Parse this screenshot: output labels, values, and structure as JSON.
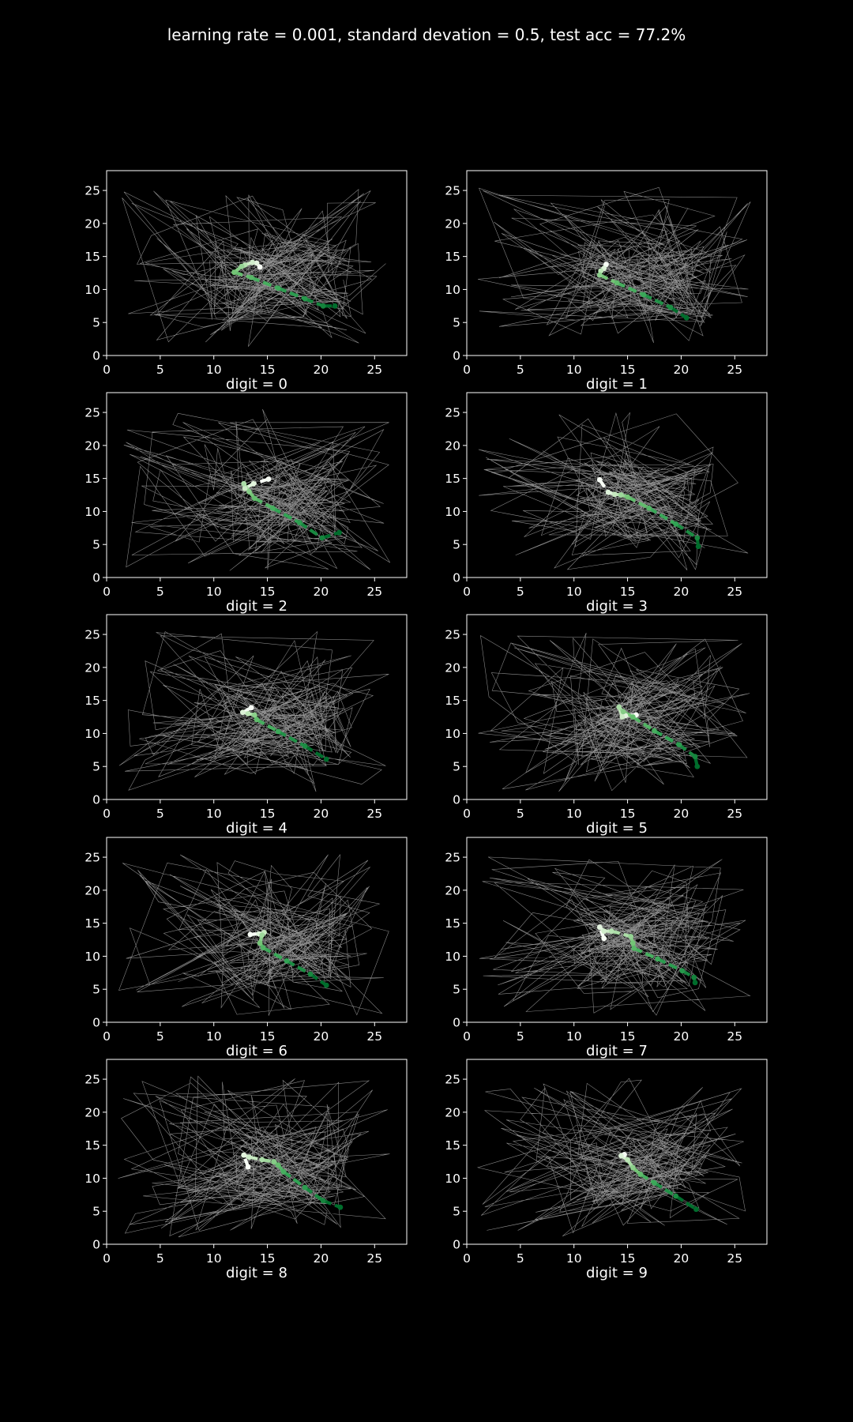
{
  "figure": {
    "title": "learning rate = 0.001, standard devation = 0.5, test acc = 77.2%",
    "background": "#000000",
    "foreground": "#ffffff",
    "noise_line_color": "#bfbfbf",
    "path_colormap": [
      "#f7fcf5",
      "#c7e9c0",
      "#74c476",
      "#31a354",
      "#006d2c"
    ]
  },
  "chart_data": [
    {
      "type": "line",
      "title": "digit = 0",
      "xlim": [
        0,
        28
      ],
      "ylim": [
        0,
        28
      ],
      "xticks": [
        0,
        5,
        10,
        15,
        20,
        25
      ],
      "yticks": [
        0,
        5,
        10,
        15,
        20,
        25
      ],
      "path": {
        "x": [
          14.3,
          14.0,
          13.6,
          12.9,
          12.6,
          11.9,
          13.5,
          16.0,
          18.5,
          20.2,
          21.3
        ],
        "y": [
          13.4,
          14.0,
          14.1,
          13.7,
          13.5,
          12.6,
          11.8,
          10.2,
          8.6,
          7.5,
          7.5
        ]
      }
    },
    {
      "type": "line",
      "title": "digit = 1",
      "xlim": [
        0,
        28
      ],
      "ylim": [
        0,
        28
      ],
      "xticks": [
        0,
        5,
        10,
        15,
        20,
        25
      ],
      "yticks": [
        0,
        5,
        10,
        15,
        20,
        25
      ],
      "path": {
        "x": [
          13.0,
          12.8,
          12.5,
          12.4,
          14.0,
          16.5,
          19.0,
          20.5
        ],
        "y": [
          13.8,
          13.2,
          12.8,
          12.2,
          11.0,
          9.2,
          7.3,
          5.7
        ]
      }
    },
    {
      "type": "line",
      "title": "digit = 2",
      "xlim": [
        0,
        28
      ],
      "ylim": [
        0,
        28
      ],
      "xticks": [
        0,
        5,
        10,
        15,
        20,
        25
      ],
      "yticks": [
        0,
        5,
        10,
        15,
        20,
        25
      ],
      "path": {
        "x": [
          15.1,
          13.7,
          12.9,
          12.8,
          13.3,
          13.8,
          15.5,
          18.0,
          20.1,
          21.7
        ],
        "y": [
          14.9,
          14.2,
          13.5,
          14.2,
          13.0,
          12.0,
          10.5,
          8.3,
          6.0,
          6.8
        ]
      }
    },
    {
      "type": "line",
      "title": "digit = 3",
      "xlim": [
        0,
        28
      ],
      "ylim": [
        0,
        28
      ],
      "xticks": [
        0,
        5,
        10,
        15,
        20,
        25
      ],
      "yticks": [
        0,
        5,
        10,
        15,
        20,
        25
      ],
      "path": {
        "x": [
          12.4,
          13.2,
          13.8,
          14.4,
          15.0,
          17.0,
          19.5,
          21.5,
          21.6
        ],
        "y": [
          14.8,
          12.9,
          12.6,
          12.5,
          12.2,
          10.5,
          8.1,
          6.0,
          4.7
        ]
      }
    },
    {
      "type": "line",
      "title": "digit = 4",
      "xlim": [
        0,
        28
      ],
      "ylim": [
        0,
        28
      ],
      "xticks": [
        0,
        5,
        10,
        15,
        20,
        25
      ],
      "yticks": [
        0,
        5,
        10,
        15,
        20,
        25
      ],
      "path": {
        "x": [
          13.5,
          12.7,
          13.2,
          13.8,
          14.0,
          16.0,
          18.5,
          20.5
        ],
        "y": [
          13.9,
          13.2,
          13.0,
          12.8,
          12.1,
          10.3,
          8.1,
          6.1
        ]
      }
    },
    {
      "type": "line",
      "title": "digit = 5",
      "xlim": [
        0,
        28
      ],
      "ylim": [
        0,
        28
      ],
      "xticks": [
        0,
        5,
        10,
        15,
        20,
        25
      ],
      "yticks": [
        0,
        5,
        10,
        15,
        20,
        25
      ],
      "path": {
        "x": [
          15.8,
          14.8,
          14.5,
          14.2,
          14.6,
          15.5,
          17.5,
          19.8,
          21.3,
          21.5
        ],
        "y": [
          12.8,
          12.7,
          12.5,
          14.0,
          13.3,
          12.5,
          10.4,
          8.3,
          6.5,
          5.0
        ]
      }
    },
    {
      "type": "line",
      "title": "digit = 6",
      "xlim": [
        0,
        28
      ],
      "ylim": [
        0,
        28
      ],
      "xticks": [
        0,
        5,
        10,
        15,
        20,
        25
      ],
      "yticks": [
        0,
        5,
        10,
        15,
        20,
        25
      ],
      "path": {
        "x": [
          13.4,
          14.2,
          14.7,
          14.5,
          14.3,
          14.6,
          16.8,
          19.0,
          20.5
        ],
        "y": [
          13.3,
          13.4,
          13.6,
          13.2,
          12.0,
          11.3,
          9.3,
          7.3,
          5.6
        ]
      }
    },
    {
      "type": "line",
      "title": "digit = 7",
      "xlim": [
        0,
        28
      ],
      "ylim": [
        0,
        28
      ],
      "xticks": [
        0,
        5,
        10,
        15,
        20,
        25
      ],
      "yticks": [
        0,
        5,
        10,
        15,
        20,
        25
      ],
      "path": {
        "x": [
          12.8,
          12.4,
          12.8,
          13.5,
          15.3,
          15.5,
          15.6,
          17.8,
          20.1,
          21.2,
          21.3
        ],
        "y": [
          12.7,
          14.4,
          13.8,
          13.8,
          13.0,
          12.0,
          11.2,
          9.6,
          7.8,
          6.8,
          6.0
        ]
      }
    },
    {
      "type": "line",
      "title": "digit = 8",
      "xlim": [
        0,
        28
      ],
      "ylim": [
        0,
        28
      ],
      "xticks": [
        0,
        5,
        10,
        15,
        20,
        25
      ],
      "yticks": [
        0,
        5,
        10,
        15,
        20,
        25
      ],
      "path": {
        "x": [
          13.2,
          12.8,
          13.3,
          14.5,
          15.6,
          16.0,
          16.5,
          18.5,
          20.2,
          21.8
        ],
        "y": [
          11.7,
          13.5,
          13.2,
          12.8,
          12.5,
          12.0,
          11.0,
          8.6,
          6.6,
          5.6
        ]
      }
    },
    {
      "type": "line",
      "title": "digit = 9",
      "xlim": [
        0,
        28
      ],
      "ylim": [
        0,
        28
      ],
      "xticks": [
        0,
        5,
        10,
        15,
        20,
        25
      ],
      "yticks": [
        0,
        5,
        10,
        15,
        20,
        25
      ],
      "path": {
        "x": [
          14.7,
          14.4,
          15.0,
          15.5,
          16.2,
          17.5,
          19.5,
          21.4
        ],
        "y": [
          13.6,
          13.4,
          12.8,
          11.6,
          10.6,
          9.3,
          7.3,
          5.3
        ]
      }
    }
  ]
}
